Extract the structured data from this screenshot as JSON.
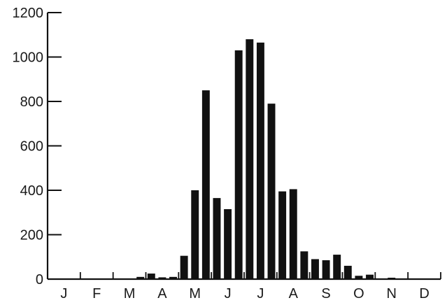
{
  "chart_data": {
    "type": "bar",
    "title": "",
    "xlabel": "",
    "ylabel": "",
    "ylim": [
      0,
      1200
    ],
    "yticks": [
      0,
      200,
      400,
      600,
      800,
      1000,
      1200
    ],
    "ytick_labels": [
      "0",
      "200",
      "400",
      "600",
      "800",
      "1000",
      "1200"
    ],
    "month_labels": [
      "J",
      "F",
      "M",
      "A",
      "M",
      "J",
      "J",
      "A",
      "S",
      "O",
      "N",
      "D"
    ],
    "bins_per_month": 3,
    "values": [
      0,
      0,
      0,
      0,
      0,
      0,
      0,
      0,
      10,
      25,
      8,
      10,
      105,
      400,
      850,
      365,
      315,
      1030,
      1080,
      1065,
      790,
      395,
      405,
      125,
      90,
      85,
      110,
      60,
      15,
      20,
      0,
      5,
      0,
      0,
      0,
      0
    ],
    "bar_color": "#111111",
    "grid": false,
    "legend": "none"
  }
}
